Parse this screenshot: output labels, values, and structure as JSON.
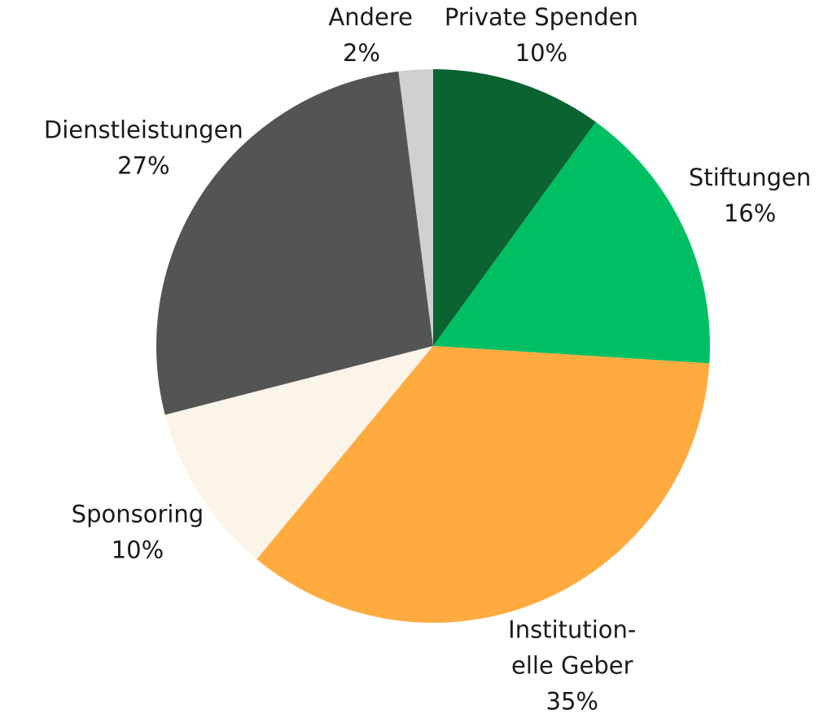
{
  "chart_data": {
    "type": "pie",
    "categories": [
      "Private Spenden",
      "Stiftungen",
      "Institution-\nelle Geber",
      "Sponsoring",
      "Dienstleistungen",
      "Andere"
    ],
    "values": [
      10,
      16,
      35,
      10,
      27,
      2
    ],
    "value_labels": [
      "10%",
      "16%",
      "35%",
      "10%",
      "27%",
      "2%"
    ],
    "colors": [
      "#0a6331",
      "#00bf63",
      "#ffab40",
      "#faf4e9",
      "#545454",
      "#d0d0d0"
    ]
  }
}
